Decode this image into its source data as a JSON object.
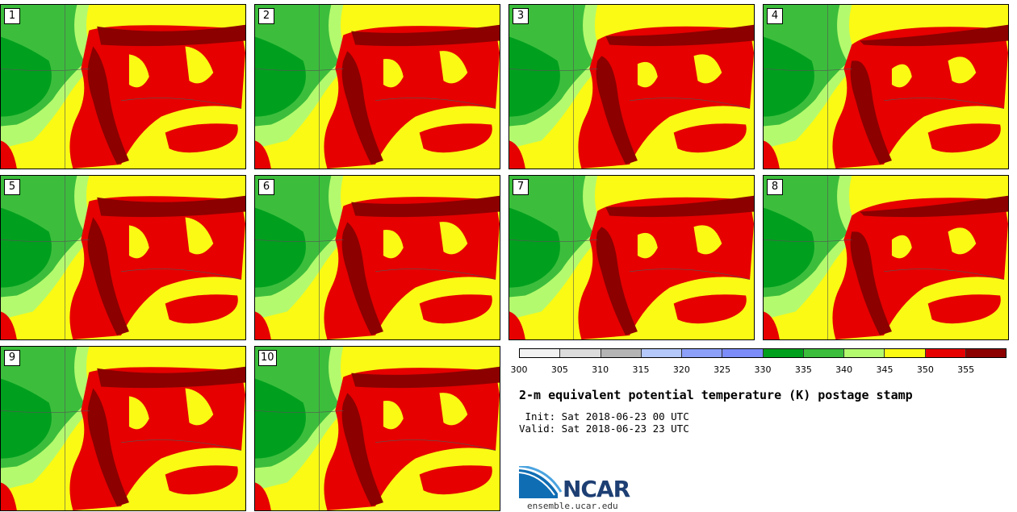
{
  "panels": [
    {
      "label": "1"
    },
    {
      "label": "2"
    },
    {
      "label": "3"
    },
    {
      "label": "4"
    },
    {
      "label": "5"
    },
    {
      "label": "6"
    },
    {
      "label": "7"
    },
    {
      "label": "8"
    },
    {
      "label": "9"
    },
    {
      "label": "10"
    }
  ],
  "legend": {
    "ticks": [
      "300",
      "305",
      "310",
      "315",
      "320",
      "325",
      "330",
      "335",
      "340",
      "345",
      "350",
      "355"
    ],
    "colors": [
      "#f2f2f2",
      "#dcdcdc",
      "#b4b4b4",
      "#b4c8fa",
      "#8ca0fa",
      "#7c8cf8",
      "#00a01e",
      "#3cbe3c",
      "#b4fa6e",
      "#fafa14",
      "#e60000",
      "#8c0000"
    ]
  },
  "title": "2-m equivalent potential temperature (K) postage stamp",
  "init": " Init: Sat 2018-06-23 00 UTC",
  "valid": "Valid: Sat 2018-06-23 23 UTC",
  "logo": {
    "word": "NCAR"
  },
  "site": "ensemble.ucar.edu"
}
